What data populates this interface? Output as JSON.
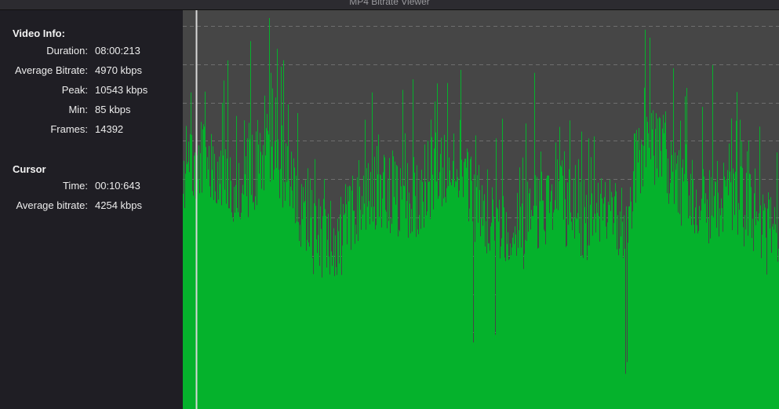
{
  "window": {
    "title": "MP4 Bitrate Viewer"
  },
  "video_info": {
    "heading": "Video Info:",
    "rows": [
      {
        "label": "Duration:",
        "value": "08:00:213"
      },
      {
        "label": "Average Bitrate:",
        "value": "4970 kbps"
      },
      {
        "label": "Peak:",
        "value": "10543 kbps"
      },
      {
        "label": "Min:",
        "value": "85 kbps"
      },
      {
        "label": "Frames:",
        "value": "14392"
      }
    ]
  },
  "cursor": {
    "heading": "Cursor",
    "rows": [
      {
        "label": "Time:",
        "value": "00:10:643"
      },
      {
        "label": "Average bitrate:",
        "value": "4254 kbps"
      }
    ]
  },
  "graph": {
    "background_color": "#464646",
    "fill_color": "#05b22c",
    "gridline_color": "#6e6e6e",
    "cursor_line_color": "#d8d8d8",
    "cursor_position_fraction": 0.022,
    "gridlines": 10,
    "peak_kbps": 10543,
    "seed": 7
  }
}
